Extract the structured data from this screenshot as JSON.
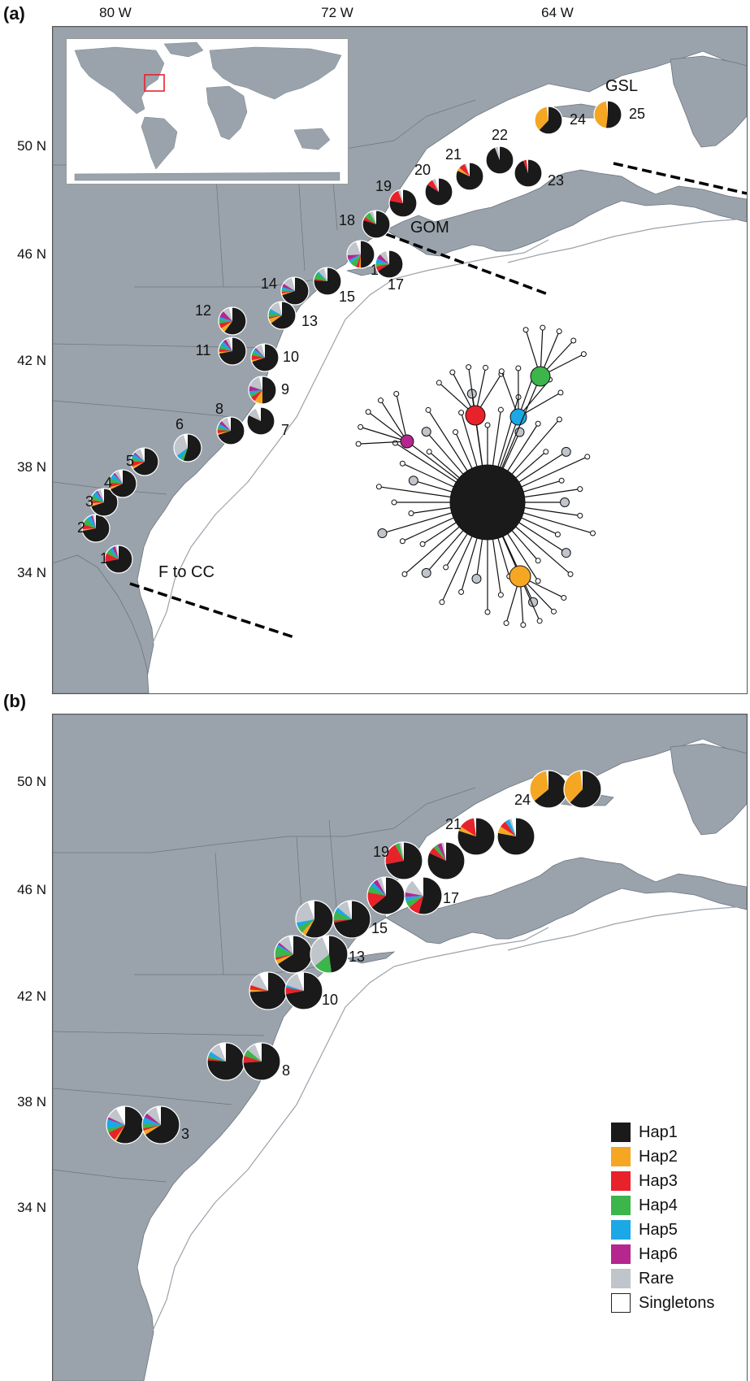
{
  "panels": [
    {
      "label": "(a)"
    },
    {
      "label": "(b)"
    }
  ],
  "axes": {
    "longitude": [
      "80 W",
      "72 W",
      "64 W"
    ],
    "latitude": [
      "50 N",
      "46 N",
      "42 N",
      "38 N",
      "34 N"
    ]
  },
  "regions": {
    "gsl": "GSL",
    "gom": "GOM",
    "fcc": "F to CC"
  },
  "legend": [
    {
      "name": "Hap1",
      "color": "#1a1a1a"
    },
    {
      "name": "Hap2",
      "color": "#f5a623"
    },
    {
      "name": "Hap3",
      "color": "#e8222a"
    },
    {
      "name": "Hap4",
      "color": "#3cb54a"
    },
    {
      "name": "Hap5",
      "color": "#1ba8e6"
    },
    {
      "name": "Hap6",
      "color": "#b5268f"
    },
    {
      "name": "Rare",
      "color": "#c0c4cb"
    },
    {
      "name": "Singletons",
      "color": "#ffffff"
    }
  ],
  "panel_a_sites": [
    {
      "n": "1",
      "f": [
        0.72,
        0,
        0.1,
        0.06,
        0.04,
        0.04,
        0.02,
        0.02
      ]
    },
    {
      "n": "2",
      "f": [
        0.72,
        0.02,
        0.06,
        0.08,
        0.06,
        0.02,
        0.02,
        0.02
      ]
    },
    {
      "n": "3",
      "f": [
        0.7,
        0.04,
        0.04,
        0.06,
        0.06,
        0.02,
        0.04,
        0.04
      ]
    },
    {
      "n": "4",
      "f": [
        0.68,
        0.03,
        0.05,
        0.06,
        0.06,
        0.02,
        0.05,
        0.05
      ]
    },
    {
      "n": "5",
      "f": [
        0.66,
        0.03,
        0.06,
        0.05,
        0.05,
        0.02,
        0.08,
        0.05
      ]
    },
    {
      "n": "6",
      "f": [
        0.55,
        0,
        0,
        0.04,
        0.06,
        0,
        0.3,
        0.05
      ]
    },
    {
      "n": "7",
      "f": [
        0.82,
        0,
        0,
        0,
        0,
        0,
        0.12,
        0.06
      ]
    },
    {
      "n": "8",
      "f": [
        0.7,
        0.02,
        0.04,
        0.04,
        0.04,
        0.04,
        0.08,
        0.04
      ]
    },
    {
      "n": "9",
      "f": [
        0.5,
        0.1,
        0.06,
        0.04,
        0.04,
        0.06,
        0.16,
        0.04
      ]
    },
    {
      "n": "10",
      "f": [
        0.7,
        0.02,
        0.06,
        0.04,
        0.04,
        0.02,
        0.08,
        0.04
      ]
    },
    {
      "n": "11",
      "f": [
        0.72,
        0.02,
        0.04,
        0.04,
        0.06,
        0.04,
        0.04,
        0.04
      ]
    },
    {
      "n": "12",
      "f": [
        0.6,
        0.06,
        0.06,
        0.04,
        0.04,
        0.08,
        0.08,
        0.04
      ]
    },
    {
      "n": "13",
      "f": [
        0.65,
        0.06,
        0.02,
        0.06,
        0.04,
        0,
        0.13,
        0.04
      ]
    },
    {
      "n": "14",
      "f": [
        0.7,
        0.02,
        0.02,
        0.02,
        0.04,
        0.04,
        0.12,
        0.04
      ]
    },
    {
      "n": "15",
      "f": [
        0.76,
        0,
        0.02,
        0.08,
        0.02,
        0,
        0.08,
        0.04
      ]
    },
    {
      "n": "16",
      "f": [
        0.5,
        0.02,
        0.04,
        0.08,
        0.04,
        0.06,
        0.2,
        0.06
      ]
    },
    {
      "n": "17",
      "f": [
        0.66,
        0,
        0.06,
        0.04,
        0.06,
        0.06,
        0.08,
        0.04
      ]
    },
    {
      "n": "18",
      "f": [
        0.8,
        0,
        0.04,
        0.08,
        0,
        0,
        0.04,
        0.04
      ]
    },
    {
      "n": "19",
      "f": [
        0.78,
        0,
        0.16,
        0,
        0,
        0,
        0.03,
        0.03
      ]
    },
    {
      "n": "20",
      "f": [
        0.84,
        0,
        0.08,
        0,
        0,
        0,
        0.04,
        0.04
      ]
    },
    {
      "n": "21",
      "f": [
        0.82,
        0.04,
        0.08,
        0,
        0,
        0,
        0.02,
        0.04
      ]
    },
    {
      "n": "22",
      "f": [
        0.94,
        0,
        0,
        0,
        0,
        0,
        0.04,
        0.02
      ]
    },
    {
      "n": "23",
      "f": [
        0.94,
        0,
        0.04,
        0,
        0,
        0,
        0,
        0.02
      ]
    },
    {
      "n": "24",
      "f": [
        0.62,
        0.36,
        0,
        0,
        0,
        0,
        0,
        0.02
      ]
    },
    {
      "n": "25",
      "f": [
        0.52,
        0.46,
        0,
        0,
        0,
        0,
        0,
        0.02
      ]
    }
  ],
  "panel_b_sites": [
    {
      "n": "",
      "f": [
        0.58,
        0.02,
        0.08,
        0.04,
        0.08,
        0.02,
        0.1,
        0.08
      ]
    },
    {
      "n": "3",
      "f": [
        0.66,
        0.04,
        0.02,
        0.04,
        0.06,
        0.04,
        0.1,
        0.04
      ]
    },
    {
      "n": "",
      "f": [
        0.76,
        0,
        0.02,
        0.02,
        0.04,
        0,
        0.1,
        0.06
      ]
    },
    {
      "n": "8",
      "f": [
        0.74,
        0,
        0.06,
        0.06,
        0,
        0,
        0.08,
        0.06
      ]
    },
    {
      "n": "",
      "f": [
        0.74,
        0.02,
        0.04,
        0,
        0,
        0,
        0.12,
        0.08
      ]
    },
    {
      "n": "10",
      "f": [
        0.72,
        0,
        0.06,
        0,
        0.02,
        0,
        0.14,
        0.06
      ]
    },
    {
      "n": "",
      "f": [
        0.66,
        0.04,
        0.02,
        0.1,
        0.02,
        0.02,
        0.1,
        0.04
      ]
    },
    {
      "n": "13",
      "f": [
        0.48,
        0,
        0,
        0.16,
        0,
        0,
        0.3,
        0.06
      ]
    },
    {
      "n": "",
      "f": [
        0.58,
        0.04,
        0,
        0.06,
        0.04,
        0,
        0.22,
        0.06
      ]
    },
    {
      "n": "15",
      "f": [
        0.72,
        0,
        0.02,
        0.08,
        0.04,
        0,
        0.1,
        0.04
      ]
    },
    {
      "n": "",
      "f": [
        0.64,
        0,
        0.14,
        0.06,
        0.04,
        0.04,
        0.04,
        0.04
      ]
    },
    {
      "n": "17",
      "f": [
        0.54,
        0,
        0.1,
        0.06,
        0.04,
        0.04,
        0.12,
        0.1
      ]
    },
    {
      "n": "19",
      "f": [
        0.72,
        0,
        0.2,
        0.04,
        0,
        0,
        0.02,
        0.02
      ]
    },
    {
      "n": "",
      "f": [
        0.82,
        0,
        0.06,
        0.04,
        0,
        0.04,
        0.02,
        0.02
      ]
    },
    {
      "n": "21",
      "f": [
        0.8,
        0.04,
        0.14,
        0,
        0,
        0,
        0,
        0.02
      ]
    },
    {
      "n": "",
      "f": [
        0.78,
        0.06,
        0.06,
        0,
        0.04,
        0,
        0.02,
        0.04
      ]
    },
    {
      "n": "24",
      "f": [
        0.64,
        0.34,
        0,
        0,
        0,
        0,
        0,
        0.02
      ]
    },
    {
      "n": "",
      "f": [
        0.62,
        0.36,
        0,
        0,
        0,
        0,
        0,
        0.02
      ]
    }
  ]
}
